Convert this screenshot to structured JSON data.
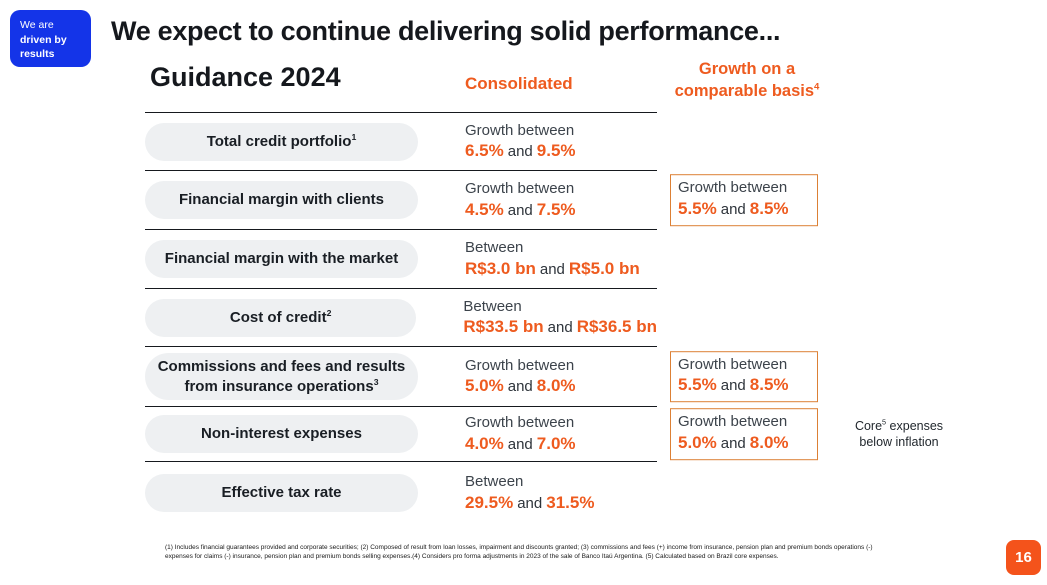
{
  "badge": {
    "line1": "We are",
    "line2": "driven by",
    "line3": "results"
  },
  "title": "We expect to continue delivering solid performance...",
  "table": {
    "heading": "Guidance 2024",
    "columns": {
      "consolidated": "Consolidated",
      "comparable_line1": "Growth on a",
      "comparable_line2": "comparable basis",
      "comparable_sup": "4"
    },
    "rows": [
      {
        "label_line1": "Total credit portfolio",
        "label_sup1": "1",
        "cons_prefix": "Growth between",
        "cons_low": "6.5%",
        "cons_and": "and",
        "cons_high": "9.5%"
      },
      {
        "label_line1": "Financial margin with clients",
        "cons_prefix": "Growth between",
        "cons_low": "4.5%",
        "cons_and": "and",
        "cons_high": "7.5%",
        "comp_prefix": "Growth between",
        "comp_low": "5.5%",
        "comp_and": "and",
        "comp_high": "8.5%"
      },
      {
        "label_line1": "Financial margin with the market",
        "cons_prefix": "Between",
        "cons_low": "R$3.0 bn",
        "cons_and": "and",
        "cons_high": "R$5.0 bn"
      },
      {
        "label_line1": "Cost of credit",
        "label_sup1": "2",
        "cons_prefix": "Between",
        "cons_low": "R$33.5 bn",
        "cons_and": "and",
        "cons_high": "R$36.5 bn"
      },
      {
        "label_line1": "Commissions and fees and results",
        "label_line2": "from insurance operations",
        "label_sup2": "3",
        "cons_prefix": "Growth between",
        "cons_low": "5.0%",
        "cons_and": "and",
        "cons_high": "8.0%",
        "comp_prefix": "Growth between",
        "comp_low": "5.5%",
        "comp_and": "and",
        "comp_high": "8.5%"
      },
      {
        "label_line1": "Non-interest expenses",
        "cons_prefix": "Growth between",
        "cons_low": "4.0%",
        "cons_and": "and",
        "cons_high": "7.0%",
        "comp_prefix": "Growth between",
        "comp_low": "5.0%",
        "comp_and": "and",
        "comp_high": "8.0%",
        "side_note": {
          "pre": "Core",
          "sup": "5",
          "post": " expenses",
          "line2": "below inflation"
        }
      },
      {
        "label_line1": "Effective tax rate",
        "cons_prefix": "Between",
        "cons_low": "29.5%",
        "cons_and": "and",
        "cons_high": "31.5%"
      }
    ]
  },
  "footnote": "(1) Includes financial guarantees provided and corporate securities; (2) Composed of result from loan losses, impairment and discounts granted; (3) commissions and fees (+) income from insurance, pension plan and premium bonds operations (-) expenses for claims (-) insurance, pension plan and premium bonds selling expenses.(4) Considers pro forma adjustments in 2023 of the sale of Banco Itaú Argentina. (5) Calculated based on Brazil core expenses.",
  "page_number": "16",
  "colors": {
    "accent_orange": "#EE5B1F",
    "box_border_orange": "#DC8035",
    "brand_blue": "#1434E8",
    "pill_gray": "#EEF0F2",
    "text_dark": "#15181D",
    "page_badge_orange": "#F4531B"
  }
}
